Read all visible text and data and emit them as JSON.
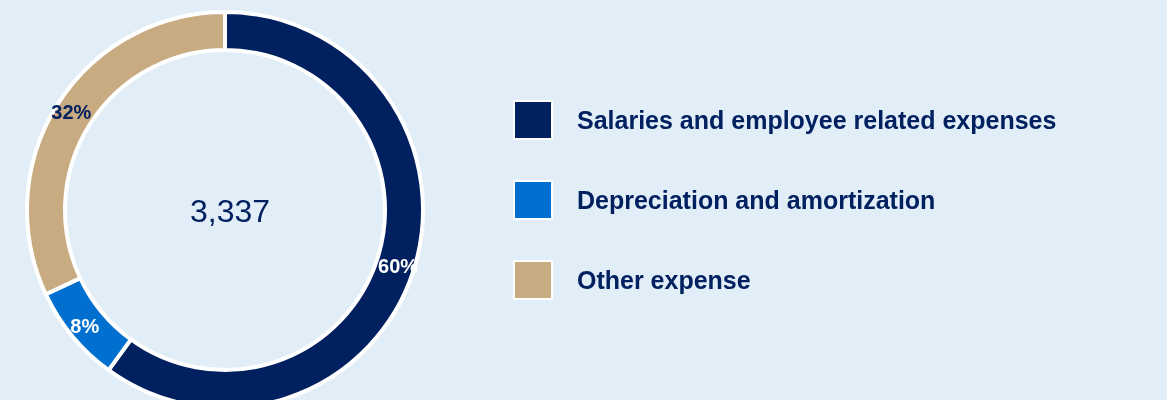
{
  "chart_data": {
    "type": "donut",
    "categories": [
      "Salaries and employee related expenses",
      "Depreciation and amortization",
      "Other expense"
    ],
    "values": [
      60,
      8,
      32
    ],
    "colors": [
      "#002060",
      "#0070d0",
      "#c9ab82"
    ],
    "value_labels": [
      "60%",
      "8%",
      "32%"
    ],
    "annotations": [
      "3,337"
    ],
    "legend": "right"
  }
}
